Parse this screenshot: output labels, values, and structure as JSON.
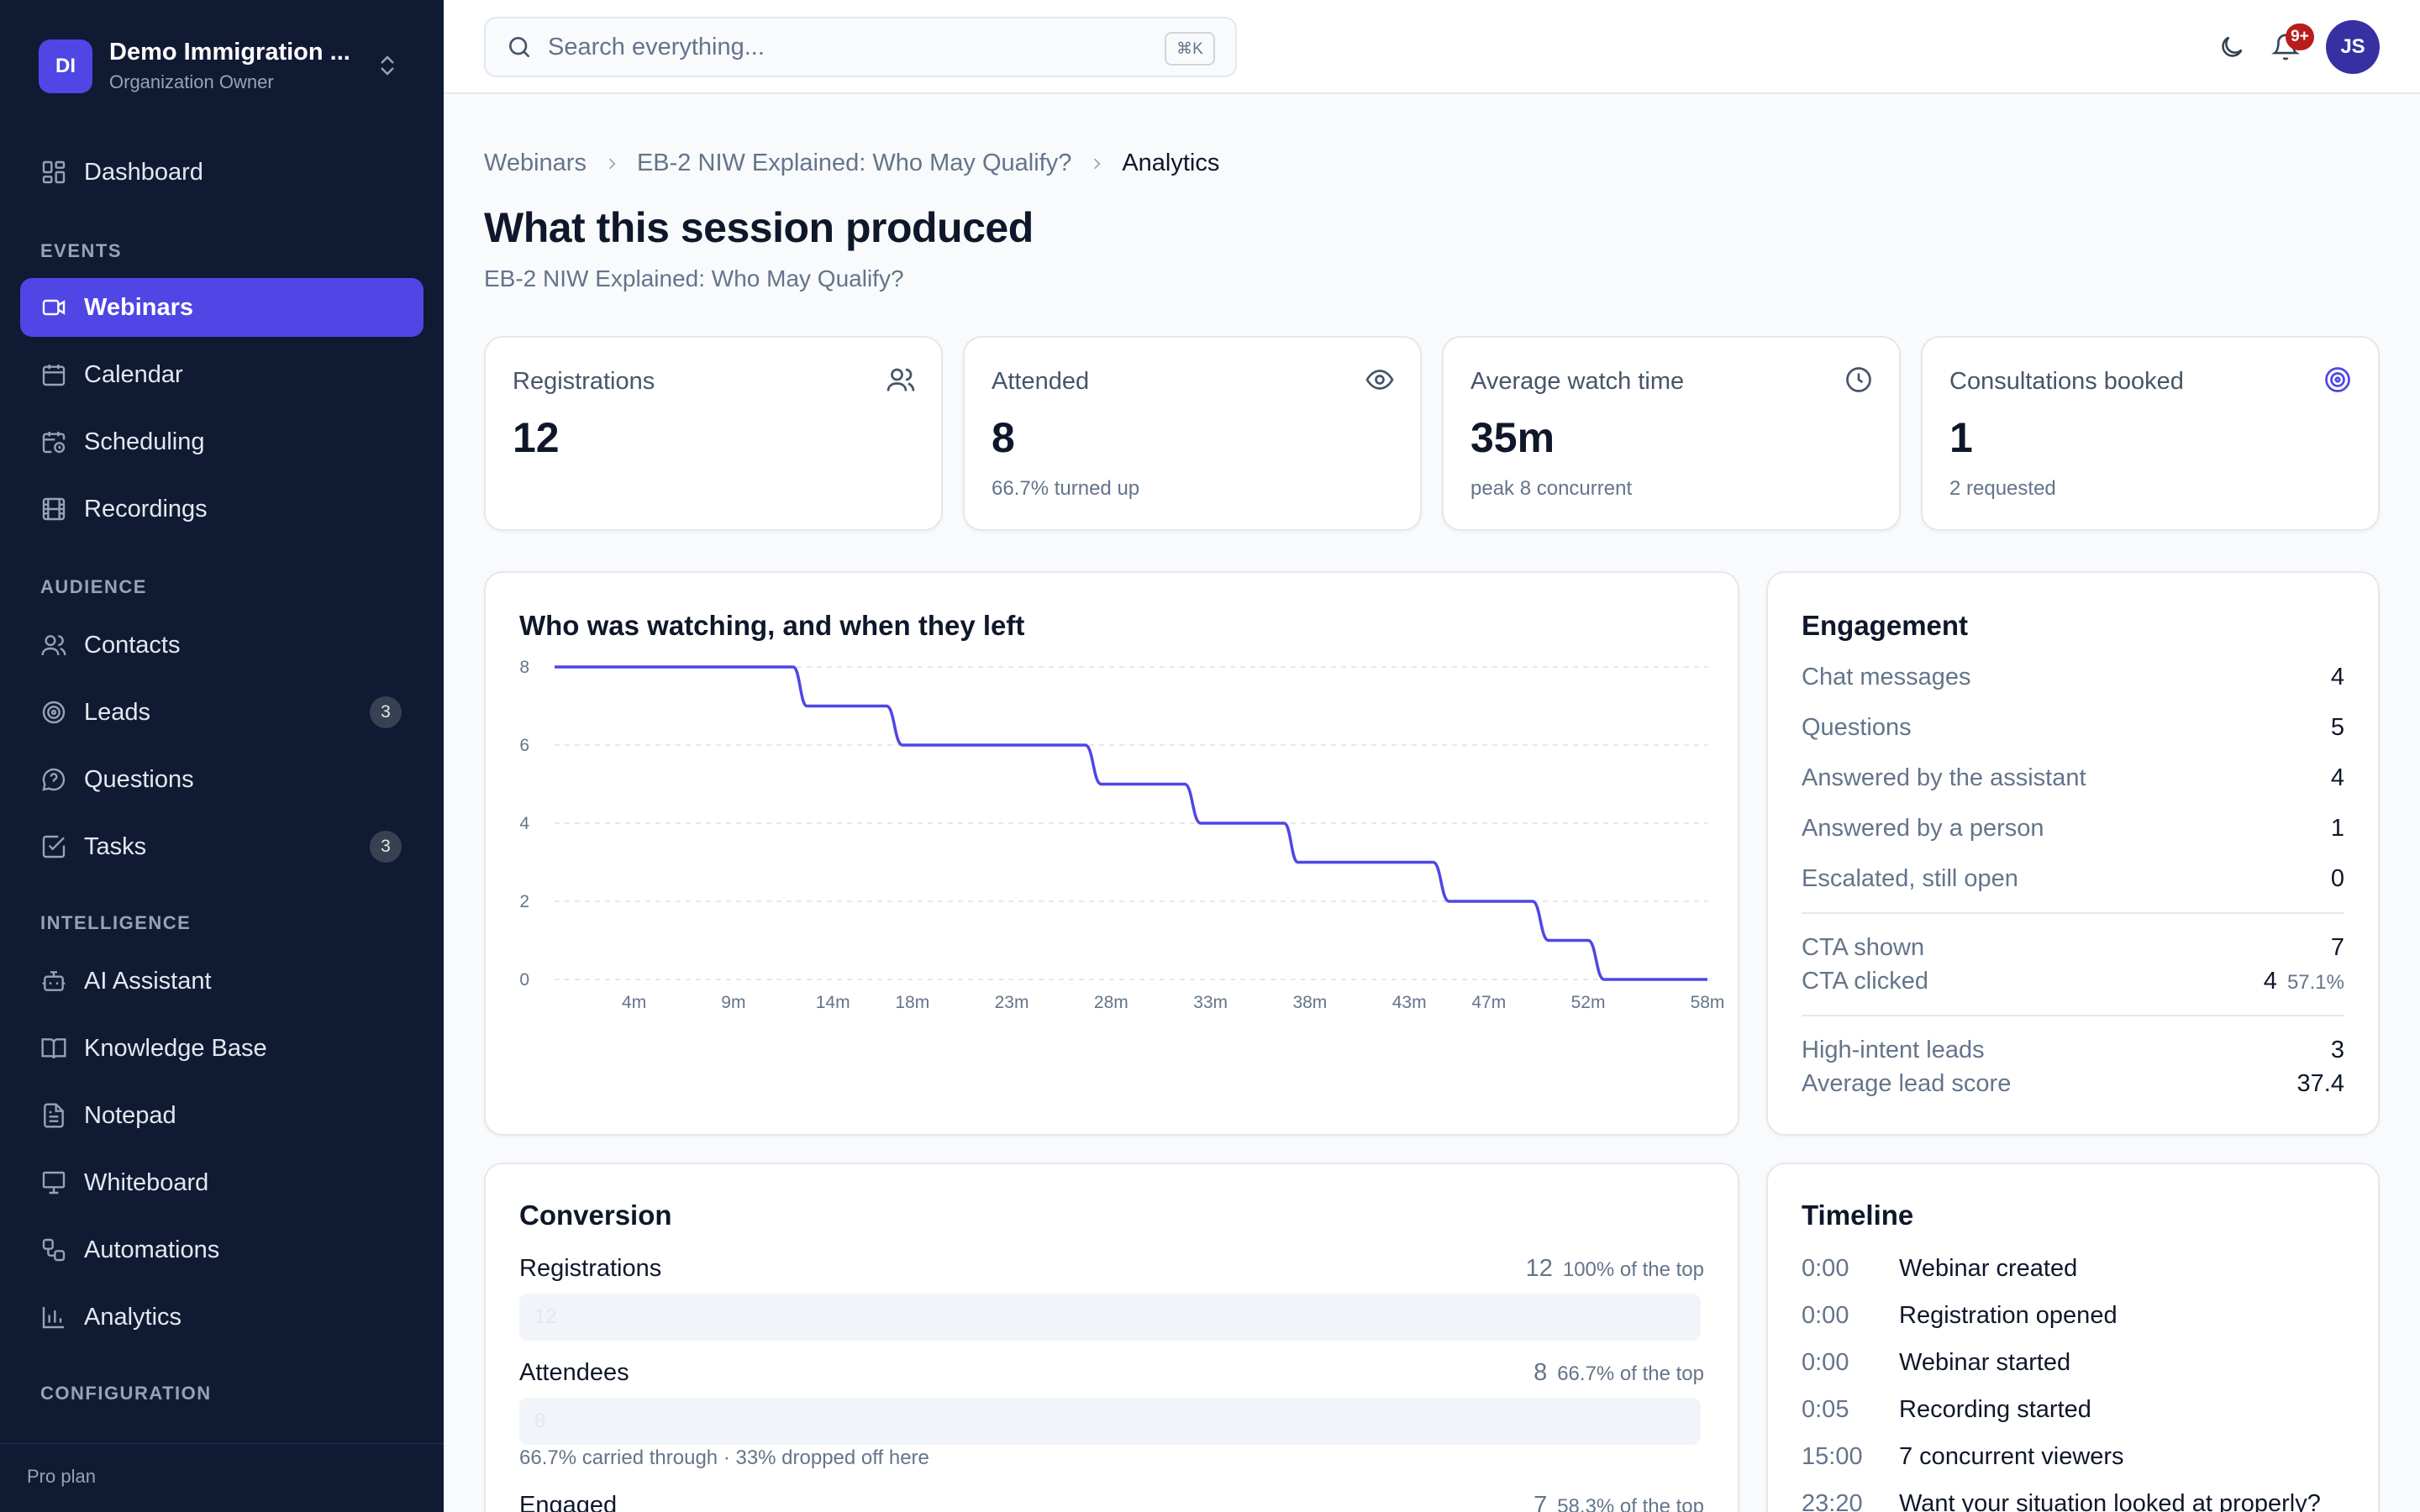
{
  "org": {
    "initials": "DI",
    "name": "Demo Immigration ...",
    "role": "Organization Owner"
  },
  "nav": {
    "dashboard": "Dashboard",
    "sections": {
      "events": "EVENTS",
      "audience": "AUDIENCE",
      "intelligence": "INTELLIGENCE",
      "configuration": "CONFIGURATION"
    },
    "items": {
      "webinars": "Webinars",
      "calendar": "Calendar",
      "scheduling": "Scheduling",
      "recordings": "Recordings",
      "contacts": "Contacts",
      "leads": "Leads",
      "questions": "Questions",
      "tasks": "Tasks",
      "ai_assistant": "AI Assistant",
      "knowledge_base": "Knowledge Base",
      "notepad": "Notepad",
      "whiteboard": "Whiteboard",
      "automations": "Automations",
      "analytics": "Analytics"
    },
    "badges": {
      "leads": "3",
      "tasks": "3"
    },
    "plan": "Pro plan"
  },
  "header": {
    "search_placeholder": "Search everything...",
    "shortcut": "⌘K",
    "notifications": "9+",
    "user_initials": "JS"
  },
  "breadcrumb": {
    "root": "Webinars",
    "webinar": "EB-2 NIW Explained: Who May Qualify?",
    "current": "Analytics"
  },
  "page": {
    "title": "What this session produced",
    "subtitle": "EB-2 NIW Explained: Who May Qualify?"
  },
  "stats": [
    {
      "label": "Registrations",
      "value": "12",
      "sub": "",
      "icon": "users-icon"
    },
    {
      "label": "Attended",
      "value": "8",
      "sub": "66.7% turned up",
      "icon": "eye-icon"
    },
    {
      "label": "Average watch time",
      "value": "35m",
      "sub": "peak 8 concurrent",
      "icon": "clock-icon"
    },
    {
      "label": "Consultations booked",
      "value": "1",
      "sub": "2 requested",
      "icon": "target-icon"
    }
  ],
  "chart_title": "Who was watching, and when they left",
  "chart_data": {
    "type": "line",
    "title": "Who was watching, and when they left",
    "x_unit": "minutes",
    "x_ticks": [
      "4m",
      "9m",
      "14m",
      "18m",
      "23m",
      "28m",
      "33m",
      "38m",
      "43m",
      "47m",
      "52m",
      "58m"
    ],
    "y_ticks": [
      0,
      2,
      4,
      6,
      8
    ],
    "ylim": [
      0,
      8
    ],
    "xlim": [
      0,
      58
    ],
    "grid": true,
    "series": [
      {
        "values": [
          [
            0,
            8
          ],
          [
            12,
            8
          ],
          [
            12.7,
            7
          ],
          [
            16.7,
            7
          ],
          [
            17.5,
            6
          ],
          [
            26.7,
            6
          ],
          [
            27.5,
            5
          ],
          [
            31.7,
            5
          ],
          [
            32.5,
            4
          ],
          [
            36.7,
            4
          ],
          [
            37.4,
            3
          ],
          [
            44.2,
            3
          ],
          [
            45,
            2
          ],
          [
            49.2,
            2
          ],
          [
            50,
            1
          ],
          [
            52,
            1
          ],
          [
            52.8,
            0
          ],
          [
            58,
            0
          ]
        ],
        "color": "#4f46e5"
      }
    ]
  },
  "engagement": {
    "title": "Engagement",
    "rows": [
      {
        "label": "Chat messages",
        "value": "4"
      },
      {
        "label": "Questions",
        "value": "5"
      },
      {
        "label": "Answered by the assistant",
        "value": "4"
      },
      {
        "label": "Answered by a person",
        "value": "1"
      },
      {
        "label": "Escalated, still open",
        "value": "0"
      }
    ],
    "cta_shown": {
      "label": "CTA shown",
      "value": "7"
    },
    "cta_clicked": {
      "label": "CTA clicked",
      "value": "4",
      "pct": "57.1%"
    },
    "high_intent": {
      "label": "High-intent leads",
      "value": "3"
    },
    "avg_score": {
      "label": "Average lead score",
      "value": "37.4"
    }
  },
  "conversion": {
    "title": "Conversion",
    "stages": [
      {
        "label": "Registrations",
        "count": "12",
        "pct": "100% of the top",
        "fraction": 1.0,
        "note": ""
      },
      {
        "label": "Attendees",
        "count": "8",
        "pct": "66.7% of the top",
        "fraction": 0.667,
        "note": "66.7% carried through · 33% dropped off here"
      },
      {
        "label": "Engaged",
        "count": "7",
        "pct": "58.3% of the top",
        "fraction": 0.583,
        "note": ""
      }
    ]
  },
  "timeline": {
    "title": "Timeline",
    "events": [
      {
        "time": "0:00",
        "event": "Webinar created"
      },
      {
        "time": "0:00",
        "event": "Registration opened"
      },
      {
        "time": "0:00",
        "event": "Webinar started"
      },
      {
        "time": "0:05",
        "event": "Recording started"
      },
      {
        "time": "15:00",
        "event": "7 concurrent viewers"
      },
      {
        "time": "23:20",
        "event": "Want your situation looked at properly?"
      }
    ]
  },
  "colors": {
    "sidebar": "#111a33",
    "accent": "#4f46e5",
    "badge": "#b91c1c"
  }
}
